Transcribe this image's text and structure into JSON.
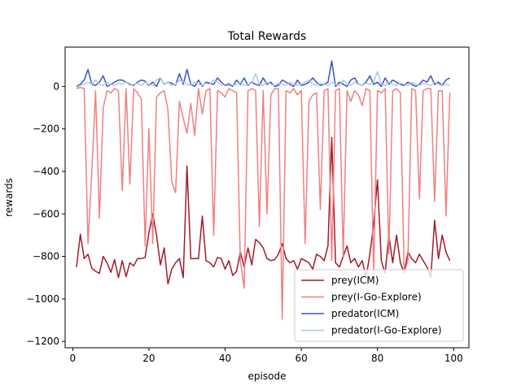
{
  "chart_data": {
    "type": "line",
    "title": "Total Rewards",
    "xlabel": "episode",
    "ylabel": "rewards",
    "xlim": [
      -2,
      104
    ],
    "ylim": [
      -1230,
      185
    ],
    "xticks": [
      0,
      20,
      40,
      60,
      80,
      100
    ],
    "yticks": [
      -1200,
      -1000,
      -800,
      -600,
      -400,
      -200,
      0
    ],
    "ytick_labels": [
      "−1200",
      "−1000",
      "−800",
      "−600",
      "−400",
      "−200",
      "0"
    ],
    "grid": false,
    "legend_position": "lower-right",
    "series": [
      {
        "name": "prey(ICM)",
        "color": "#a31a2a",
        "x": [
          1,
          2,
          3,
          4,
          5,
          6,
          7,
          8,
          9,
          10,
          11,
          12,
          13,
          14,
          15,
          16,
          17,
          18,
          19,
          20,
          21,
          22,
          23,
          24,
          25,
          26,
          27,
          28,
          29,
          30,
          31,
          32,
          33,
          34,
          35,
          36,
          37,
          38,
          39,
          40,
          41,
          42,
          43,
          44,
          45,
          46,
          47,
          48,
          49,
          50,
          51,
          52,
          53,
          54,
          55,
          56,
          57,
          58,
          59,
          60,
          61,
          62,
          63,
          64,
          65,
          66,
          67,
          68,
          69,
          70,
          71,
          72,
          73,
          74,
          75,
          76,
          77,
          78,
          79,
          80,
          81,
          82,
          83,
          84,
          85,
          86,
          87,
          88,
          89,
          90,
          91,
          92,
          93,
          94,
          95,
          96,
          97,
          98,
          99
        ],
        "values": [
          -850,
          -695,
          -810,
          -790,
          -855,
          -870,
          -880,
          -800,
          -830,
          -875,
          -815,
          -900,
          -820,
          -895,
          -830,
          -845,
          -810,
          -810,
          -805,
          -690,
          -600,
          -700,
          -840,
          -760,
          -930,
          -860,
          -830,
          -810,
          -900,
          -375,
          -810,
          -810,
          -810,
          -610,
          -820,
          -830,
          -850,
          -805,
          -810,
          -860,
          -820,
          -890,
          -870,
          -780,
          -850,
          -760,
          -840,
          -720,
          -735,
          -760,
          -810,
          -820,
          -815,
          -790,
          -740,
          -810,
          -830,
          -820,
          -860,
          -810,
          -820,
          -830,
          -860,
          -790,
          -800,
          -820,
          -750,
          -240,
          -830,
          -850,
          -800,
          -750,
          -830,
          -810,
          -850,
          -820,
          -900,
          -790,
          -650,
          -440,
          -820,
          -880,
          -700,
          -830,
          -700,
          -830,
          -880,
          -780,
          -810,
          -830,
          -790,
          -820,
          -850,
          -900,
          -630,
          -810,
          -700,
          -780,
          -820
        ]
      },
      {
        "name": "prey(I-Go-Explore)",
        "color": "#f08080",
        "x": [
          1,
          2,
          3,
          4,
          5,
          6,
          7,
          8,
          9,
          10,
          11,
          12,
          13,
          14,
          15,
          16,
          17,
          18,
          19,
          20,
          21,
          22,
          23,
          24,
          25,
          26,
          27,
          28,
          29,
          30,
          31,
          32,
          33,
          34,
          35,
          36,
          37,
          38,
          39,
          40,
          41,
          42,
          43,
          44,
          45,
          46,
          47,
          48,
          49,
          50,
          51,
          52,
          53,
          54,
          55,
          56,
          57,
          58,
          59,
          60,
          61,
          62,
          63,
          64,
          65,
          66,
          67,
          68,
          69,
          70,
          71,
          72,
          73,
          74,
          75,
          76,
          77,
          78,
          79,
          80,
          81,
          82,
          83,
          84,
          85,
          86,
          87,
          88,
          89,
          90,
          91,
          92,
          93,
          94,
          95,
          96,
          97,
          98,
          99
        ],
        "values": [
          -10,
          -5,
          -10,
          -740,
          -400,
          -20,
          -620,
          -100,
          -20,
          -30,
          -10,
          -20,
          -490,
          -10,
          -460,
          -10,
          -30,
          -60,
          -750,
          -200,
          -740,
          -50,
          -30,
          -20,
          -110,
          -450,
          -500,
          -70,
          -150,
          -220,
          -80,
          -230,
          -10,
          -130,
          -20,
          -10,
          -700,
          -20,
          -30,
          -50,
          -10,
          -20,
          -30,
          -820,
          -950,
          -20,
          -10,
          -20,
          -660,
          -20,
          -600,
          -40,
          -10,
          -10,
          -1095,
          -20,
          -30,
          -10,
          -40,
          -20,
          -740,
          -70,
          -40,
          -30,
          -580,
          -20,
          -10,
          -820,
          -20,
          -10,
          -800,
          -20,
          -70,
          -20,
          -40,
          -90,
          -10,
          -20,
          -880,
          -20,
          -30,
          -10,
          -790,
          -20,
          -10,
          -30,
          -880,
          -820,
          -10,
          -20,
          -530,
          -20,
          -10,
          -10,
          -540,
          -20,
          -20,
          -610,
          -30
        ]
      },
      {
        "name": "predator(ICM)",
        "color": "#3a54c4",
        "x": [
          1,
          2,
          3,
          4,
          5,
          6,
          7,
          8,
          9,
          10,
          11,
          12,
          13,
          14,
          15,
          16,
          17,
          18,
          19,
          20,
          21,
          22,
          23,
          24,
          25,
          26,
          27,
          28,
          29,
          30,
          31,
          32,
          33,
          34,
          35,
          36,
          37,
          38,
          39,
          40,
          41,
          42,
          43,
          44,
          45,
          46,
          47,
          48,
          49,
          50,
          51,
          52,
          53,
          54,
          55,
          56,
          57,
          58,
          59,
          60,
          61,
          62,
          63,
          64,
          65,
          66,
          67,
          68,
          69,
          70,
          71,
          72,
          73,
          74,
          75,
          76,
          77,
          78,
          79,
          80,
          81,
          82,
          83,
          84,
          85,
          86,
          87,
          88,
          89,
          90,
          91,
          92,
          93,
          94,
          95,
          96,
          97,
          98,
          99
        ],
        "values": [
          0,
          10,
          30,
          80,
          10,
          5,
          20,
          50,
          0,
          10,
          20,
          30,
          30,
          20,
          10,
          5,
          20,
          30,
          25,
          5,
          20,
          0,
          40,
          10,
          20,
          15,
          5,
          60,
          10,
          80,
          10,
          0,
          30,
          0,
          20,
          15,
          10,
          40,
          20,
          5,
          10,
          0,
          30,
          10,
          40,
          5,
          20,
          10,
          5,
          40,
          10,
          20,
          0,
          5,
          30,
          20,
          10,
          0,
          30,
          5,
          10,
          20,
          40,
          20,
          5,
          10,
          20,
          120,
          0,
          20,
          10,
          0,
          30,
          40,
          10,
          5,
          20,
          50,
          10,
          20,
          0,
          40,
          10,
          30,
          20,
          10,
          5,
          20,
          10,
          0,
          10,
          30,
          20,
          50,
          10,
          20,
          5,
          30,
          40
        ]
      },
      {
        "name": "predator(I-Go-Explore)",
        "color": "#aec8e6",
        "x": [
          1,
          2,
          3,
          4,
          5,
          6,
          7,
          8,
          9,
          10,
          11,
          12,
          13,
          14,
          15,
          16,
          17,
          18,
          19,
          20,
          21,
          22,
          23,
          24,
          25,
          26,
          27,
          28,
          29,
          30,
          31,
          32,
          33,
          34,
          35,
          36,
          37,
          38,
          39,
          40,
          41,
          42,
          43,
          44,
          45,
          46,
          47,
          48,
          49,
          50,
          51,
          52,
          53,
          54,
          55,
          56,
          57,
          58,
          59,
          60,
          61,
          62,
          63,
          64,
          65,
          66,
          67,
          68,
          69,
          70,
          71,
          72,
          73,
          74,
          75,
          76,
          77,
          78,
          79,
          80,
          81,
          82,
          83,
          84,
          85,
          86,
          87,
          88,
          89,
          90,
          91,
          92,
          93,
          94,
          95,
          96,
          97,
          98,
          99
        ],
        "values": [
          -5,
          5,
          10,
          20,
          10,
          30,
          10,
          5,
          20,
          10,
          5,
          15,
          10,
          20,
          5,
          10,
          15,
          5,
          20,
          10,
          5,
          30,
          40,
          10,
          20,
          5,
          10,
          30,
          20,
          10,
          5,
          20,
          10,
          5,
          15,
          10,
          30,
          20,
          5,
          10,
          15,
          5,
          10,
          20,
          5,
          10,
          15,
          60,
          10,
          5,
          20,
          10,
          5,
          15,
          10,
          5,
          20,
          10,
          5,
          10,
          20,
          30,
          10,
          5,
          15,
          10,
          5,
          20,
          10,
          5,
          30,
          10,
          5,
          20,
          10,
          5,
          15,
          10,
          20,
          70,
          10,
          5,
          20,
          10,
          5,
          15,
          10,
          5,
          20,
          10,
          5,
          15,
          10,
          5,
          20,
          10,
          5,
          10,
          5
        ]
      }
    ]
  }
}
